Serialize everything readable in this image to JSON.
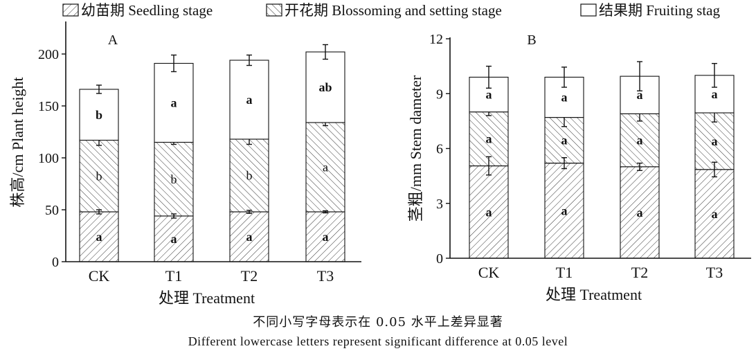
{
  "legend": [
    {
      "label": "幼苗期 Seedling stage",
      "pattern": "hatch-fwd"
    },
    {
      "label": "开花期 Blossoming and setting stage",
      "pattern": "hatch-back"
    },
    {
      "label": "结果期 Fruiting stag",
      "pattern": "blank"
    }
  ],
  "notes": {
    "chinese": "不同小写字母表示在 0.05 水平上差异显著",
    "english": "Different lowercase letters represent significant difference at 0.05 level"
  },
  "chart_data": [
    {
      "type": "bar",
      "stacked": true,
      "panel_label": "A",
      "categories": [
        "CK",
        "T1",
        "T2",
        "T3"
      ],
      "xlabel": "处理 Treatment",
      "ylabel": "株高/cm Plant height",
      "ylim": [
        0,
        230
      ],
      "yticks": [
        0,
        50,
        100,
        150,
        200
      ],
      "series": [
        {
          "name": "幼苗期 Seedling stage",
          "values": [
            48,
            44,
            48,
            48
          ],
          "errors": [
            2,
            2,
            1.5,
            1
          ],
          "letters": [
            "a",
            "a",
            "a",
            "a"
          ],
          "letters_bold": [
            true,
            true,
            true,
            true
          ]
        },
        {
          "name": "开花期 Blossoming and setting stage",
          "values": [
            69,
            71,
            70,
            86
          ],
          "errors": [
            5,
            2,
            5,
            3
          ],
          "letters": [
            "b",
            "b",
            "b",
            "a"
          ],
          "letters_bold": [
            false,
            false,
            false,
            false
          ]
        },
        {
          "name": "结果期 Fruiting stag",
          "values": [
            49,
            76,
            76,
            68
          ],
          "errors": [
            4,
            8,
            5,
            7
          ],
          "letters": [
            "b",
            "a",
            "a",
            "ab"
          ],
          "letters_bold": [
            true,
            true,
            true,
            true
          ]
        }
      ]
    },
    {
      "type": "bar",
      "stacked": true,
      "panel_label": "B",
      "categories": [
        "CK",
        "T1",
        "T2",
        "T3"
      ],
      "xlabel": "处理 Treatment",
      "ylabel": "茎粗/mm Stem dameter",
      "ylim": [
        0,
        12
      ],
      "yticks": [
        0,
        3,
        6,
        9,
        12
      ],
      "series": [
        {
          "name": "幼苗期 Seedling stage",
          "values": [
            5.05,
            5.2,
            5.0,
            4.85
          ],
          "errors": [
            0.5,
            0.3,
            0.2,
            0.4
          ],
          "letters": [
            "a",
            "a",
            "a",
            "a"
          ],
          "letters_bold": [
            true,
            true,
            true,
            true
          ]
        },
        {
          "name": "开花期 Blossoming and setting stage",
          "values": [
            2.95,
            2.5,
            2.9,
            3.1
          ],
          "errors": [
            0.2,
            0.5,
            0.4,
            0.5
          ],
          "letters": [
            "a",
            "a",
            "a",
            "a"
          ],
          "letters_bold": [
            true,
            true,
            true,
            true
          ]
        },
        {
          "name": "结果期 Fruiting stag",
          "values": [
            1.9,
            2.2,
            2.05,
            2.05
          ],
          "errors": [
            0.6,
            0.55,
            0.8,
            0.65
          ],
          "letters": [
            "a",
            "a",
            "a",
            "a"
          ],
          "letters_bold": [
            true,
            true,
            true,
            true
          ]
        }
      ]
    }
  ]
}
